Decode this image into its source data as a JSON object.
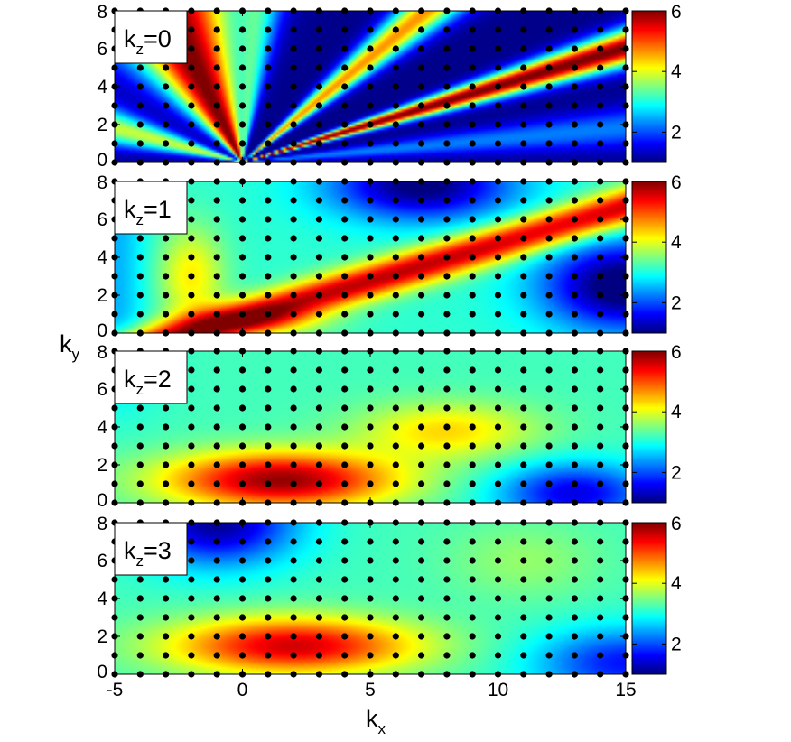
{
  "chart_data": {
    "type": "heatmap",
    "xlabel": {
      "main": "k",
      "sub": "x"
    },
    "ylabel": {
      "main": "k",
      "sub": "y"
    },
    "xlim": [
      -5,
      15
    ],
    "ylim": [
      0,
      8
    ],
    "xticks": [
      -5,
      0,
      5,
      10,
      15
    ],
    "yticks": [
      0,
      2,
      4,
      6,
      8
    ],
    "colorbar": {
      "range": [
        1,
        6
      ],
      "ticks": [
        2,
        4,
        6
      ],
      "colormap": "jet"
    },
    "marker_grid": {
      "x_start": -5,
      "x_end": 15,
      "x_step": 1,
      "y_start": 0,
      "y_end": 8,
      "y_step": 1,
      "color": "#000000"
    },
    "panels": [
      {
        "label_main": "k",
        "label_sub": "z",
        "label_value": "=0",
        "kz": 0
      },
      {
        "label_main": "k",
        "label_sub": "z",
        "label_value": "=1",
        "kz": 1
      },
      {
        "label_main": "k",
        "label_sub": "z",
        "label_value": "=2",
        "kz": 2
      },
      {
        "label_main": "k",
        "label_sub": "z",
        "label_value": "=3",
        "kz": 3
      }
    ]
  }
}
